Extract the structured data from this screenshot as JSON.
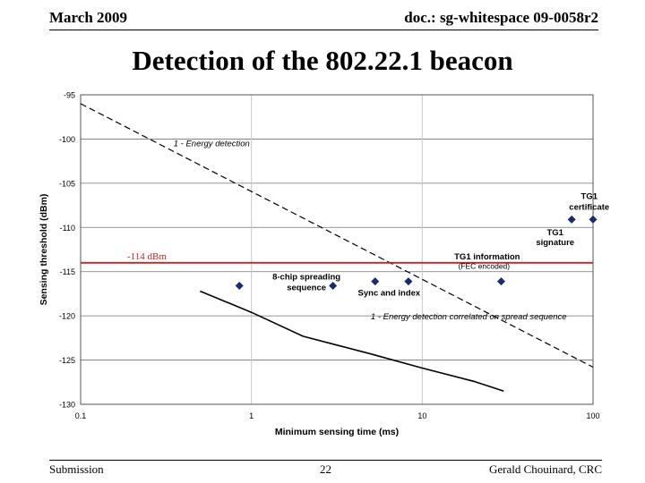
{
  "header": {
    "date": "March 2009",
    "doc": "doc.: sg-whitespace 09-0058r2"
  },
  "slide": {
    "title": "Detection of the 802.22.1 beacon"
  },
  "footer": {
    "left": "Submission",
    "page": "22",
    "author": "Gerald Chouinard, CRC"
  },
  "colors": {
    "threshold": "#cc2222",
    "marker": "#1a2a6e",
    "grid": "#c0c0c0"
  },
  "chart_data": {
    "type": "scatter",
    "xscale": "log",
    "xlabel": "Minimum sensing time (ms)",
    "ylabel": "Sensing threshold (dBm)",
    "xlim": [
      0.1,
      100
    ],
    "ylim": [
      -130,
      -95
    ],
    "xticks": [
      {
        "value": 0.1,
        "label": "0.1"
      },
      {
        "value": 1,
        "label": "1"
      },
      {
        "value": 10,
        "label": "10"
      },
      {
        "value": 100,
        "label": "100"
      }
    ],
    "yticks": [
      {
        "value": -95,
        "label": "-95"
      },
      {
        "value": -100,
        "label": "-100"
      },
      {
        "value": -105,
        "label": "-105"
      },
      {
        "value": -110,
        "label": "-110"
      },
      {
        "value": -115,
        "label": "-115"
      },
      {
        "value": -120,
        "label": "-120"
      },
      {
        "value": -125,
        "label": "-125"
      },
      {
        "value": -130,
        "label": "-130"
      }
    ],
    "threshold": {
      "y": -114,
      "label": "-114 dBm"
    },
    "series": [
      {
        "name": "1 - Energy detection",
        "style": "dashed",
        "x": [
          0.1,
          100
        ],
        "y": [
          -96,
          -125.8
        ]
      },
      {
        "name": "1 - Energy detection correlated on spread sequence",
        "style": "solid",
        "x": [
          0.5,
          1,
          2,
          5,
          10,
          20,
          30
        ],
        "y": [
          -117.2,
          -119.6,
          -122.3,
          -124.3,
          -125.9,
          -127.4,
          -128.5
        ]
      }
    ],
    "points": [
      {
        "x": 0.85,
        "y": -116.6
      },
      {
        "x": 3,
        "y": -116.6
      },
      {
        "x": 5.3,
        "y": -116.1
      },
      {
        "x": 8.3,
        "y": -116.1
      },
      {
        "x": 29,
        "y": -116.1
      },
      {
        "x": 75,
        "y": -109.1
      },
      {
        "x": 100,
        "y": -109.1
      }
    ],
    "annotations": [
      {
        "text": "1 - Energy detection",
        "x": 0.35,
        "y": -100.8,
        "italic": true
      },
      {
        "text": "8-chip spreading",
        "x": 2.1,
        "y": -115.9
      },
      {
        "text": "sequence",
        "x": 2.1,
        "y": -117.1
      },
      {
        "text": "Sync and index",
        "x": 6.4,
        "y": -117.7
      },
      {
        "text": "TG1 information",
        "x": 24,
        "y": -113.6
      },
      {
        "text": "(FEC encoded)",
        "x": 23,
        "y": -114.7
      },
      {
        "text": "1 - Energy detection correlated on spread sequence",
        "x": 5,
        "y": -120.4,
        "italic": true
      },
      {
        "text": "TG1",
        "x": 95,
        "y": -106.8
      },
      {
        "text": "certificate",
        "x": 95,
        "y": -108
      },
      {
        "text": "TG1",
        "x": 60,
        "y": -110.9
      },
      {
        "text": "signature",
        "x": 60,
        "y": -112
      }
    ]
  }
}
